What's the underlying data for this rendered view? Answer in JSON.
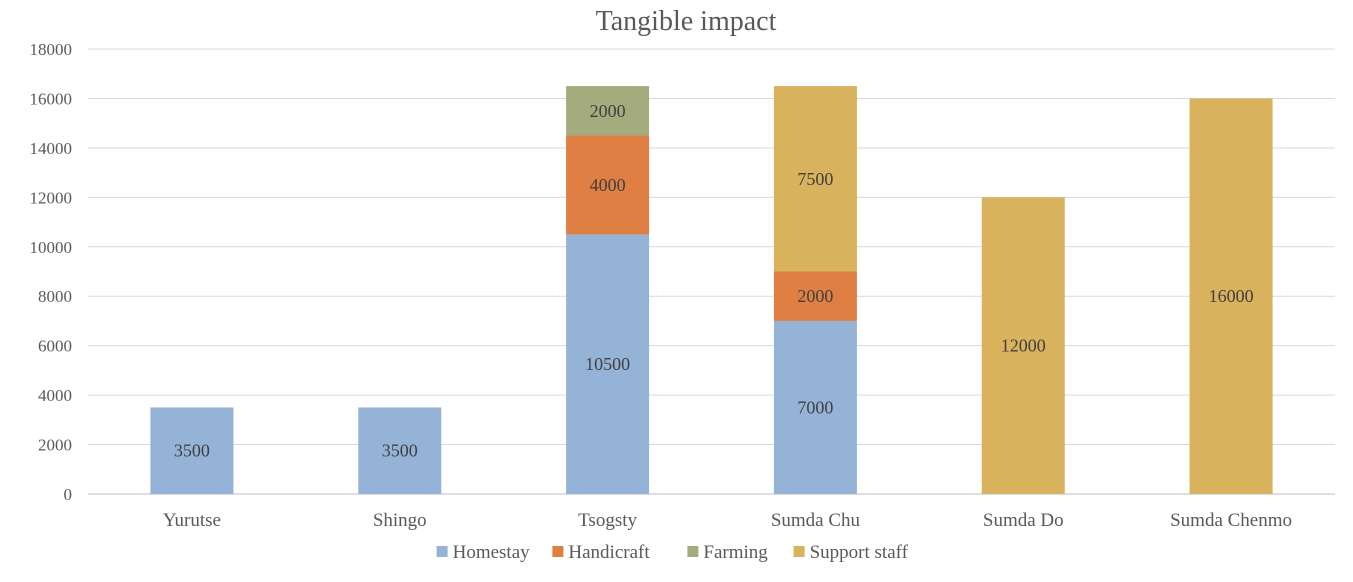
{
  "chart_data": {
    "type": "bar",
    "stacked": true,
    "title": "Tangible impact",
    "categories": [
      "Yurutse",
      "Shingo",
      "Tsogsty",
      "Sumda Chu",
      "Sumda Do",
      "Sumda Chenmo"
    ],
    "series": [
      {
        "name": "Homestay",
        "color": "#95b3d7",
        "values": [
          3500,
          3500,
          10500,
          7000,
          0,
          0
        ]
      },
      {
        "name": "Handicraft",
        "color": "#e07f44",
        "values": [
          0,
          0,
          4000,
          2000,
          0,
          0
        ]
      },
      {
        "name": "Farming",
        "color": "#a4ac7e",
        "values": [
          0,
          0,
          2000,
          0,
          0,
          0
        ]
      },
      {
        "name": "Support staff",
        "color": "#d8b25c",
        "values": [
          0,
          0,
          0,
          7500,
          12000,
          16000
        ]
      }
    ],
    "ylim": [
      0,
      18000
    ],
    "yticks": [
      0,
      2000,
      4000,
      6000,
      8000,
      10000,
      12000,
      14000,
      16000,
      18000
    ],
    "grid": true,
    "legend": "bottom"
  }
}
